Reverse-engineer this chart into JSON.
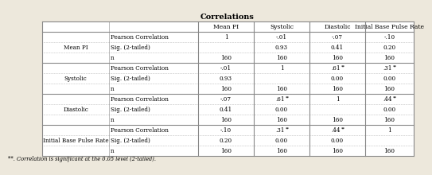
{
  "title": "Correlations",
  "col_headers": [
    "Mean PI",
    "Systolic",
    "Diastolic",
    "Initial Base Pulse Rate"
  ],
  "row_groups": [
    {
      "label": "Mean PI",
      "rows": [
        [
          "Pearson Correlation",
          "1",
          "-.01",
          "-.07",
          "-.10"
        ],
        [
          "Sig. (2-tailed)",
          "",
          "0.93",
          "0.41",
          "0.20"
        ],
        [
          "n",
          "160",
          "160",
          "160",
          "160"
        ]
      ]
    },
    {
      "label": "Systolic",
      "rows": [
        [
          "Pearson Correlation",
          "-.01",
          "1",
          ".61**",
          ".31**"
        ],
        [
          "Sig. (2-tailed)",
          "0.93",
          "",
          "0.00",
          "0.00"
        ],
        [
          "n",
          "160",
          "160",
          "160",
          "160"
        ]
      ]
    },
    {
      "label": "Diastolic",
      "rows": [
        [
          "Pearson Correlation",
          "-.07",
          ".61**",
          "1",
          ".44**"
        ],
        [
          "Sig. (2-tailed)",
          "0.41",
          "0.00",
          "",
          "0.00"
        ],
        [
          "n",
          "160",
          "160",
          "160",
          "160"
        ]
      ]
    },
    {
      "label": "Initial Base Pulse Rate",
      "rows": [
        [
          "Pearson Correlation",
          "-.10",
          ".31**",
          ".44**",
          "1"
        ],
        [
          "Sig. (2-tailed)",
          "0.20",
          "0.00",
          "0.00",
          ""
        ],
        [
          "n",
          "160",
          "160",
          "160",
          "160"
        ]
      ]
    }
  ],
  "footnote": "**. Correlation is significant at the 0.05 level (2-tailed).",
  "bg_color": "#ede8dc",
  "border_color": "#888888",
  "title_font_size": 7.0,
  "header_font_size": 5.5,
  "cell_font_size": 5.2,
  "label_font_size": 5.2,
  "footnote_font_size": 4.8
}
